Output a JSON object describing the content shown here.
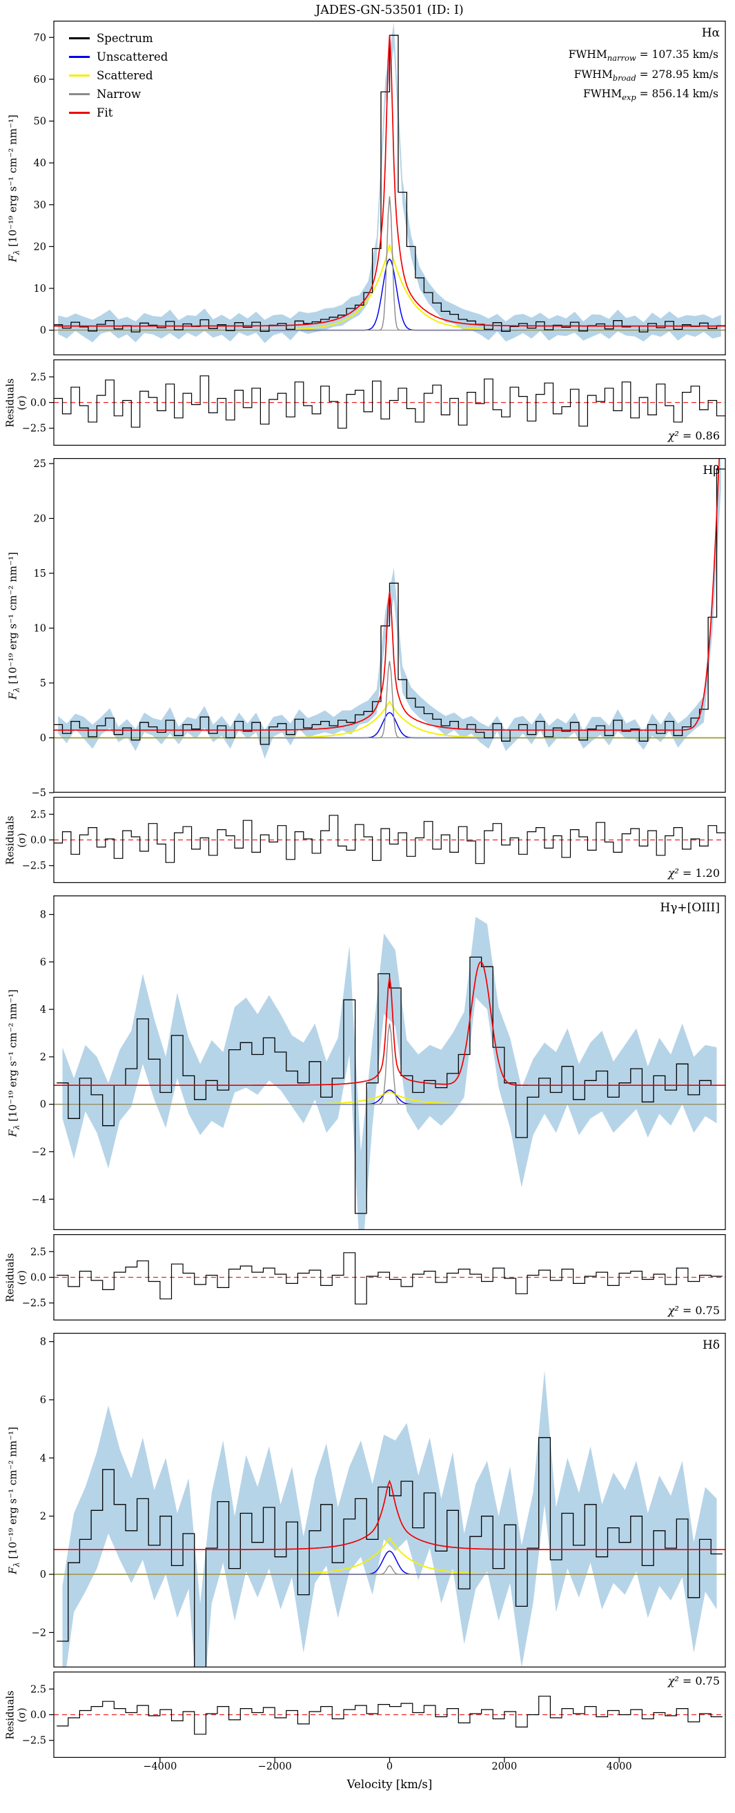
{
  "title": "JADES-GN-53501 (ID: I)",
  "axis": {
    "flux_f": "F",
    "flux_sub": "λ",
    "flux_units": " [10⁻¹⁹ erg s⁻¹ cm⁻² nm⁻¹]",
    "resid_label": "Residuals",
    "resid_sigma": "(σ)",
    "xlabel": "Velocity [km/s]"
  },
  "legend": [
    {
      "label": "Spectrum",
      "color_key": "spectrum"
    },
    {
      "label": "Unscattered",
      "color_key": "unscattered"
    },
    {
      "label": "Scattered",
      "color_key": "scattered"
    },
    {
      "label": "Narrow",
      "color_key": "narrow"
    },
    {
      "label": "Fit",
      "color_key": "fit"
    }
  ],
  "colors": {
    "spectrum": "#000000",
    "unscattered": "#0000ee",
    "scattered": "#f5ef00",
    "narrow": "#8a8a8a",
    "fit": "#f00000",
    "band": "#a9cde4",
    "zero_line": "#808080",
    "resid_zero": "#f02020"
  },
  "chart_meta": {
    "xlim": [
      -5850,
      5850
    ],
    "xticks": {
      "values": [
        -4000,
        -2000,
        0,
        2000,
        4000
      ],
      "labels": [
        "−4000",
        "−2000",
        "0",
        "2000",
        "4000"
      ]
    },
    "resid_ylim": [
      -4.2,
      4.2
    ],
    "resid_yticks": [
      -2.5,
      0,
      2.5
    ]
  },
  "chart_data": [
    {
      "type": "line",
      "label": "Hα",
      "chi2": {
        "sym": "χ²",
        "val": " = 0.86"
      },
      "annotations": [
        {
          "pre": "FWHM",
          "sub": "narrow",
          "post": " = 107.35 km/s"
        },
        {
          "pre": "FWHM",
          "sub": "broad",
          "post": " = 278.95 km/s"
        },
        {
          "pre": "FWHM",
          "sub": "exp",
          "post": " = 856.14 km/s"
        }
      ],
      "ylim": [
        -6,
        74
      ],
      "yticks": [
        0,
        10,
        20,
        30,
        40,
        50,
        60,
        70
      ],
      "continuum": 1.0,
      "model": {
        "narrow": {
          "amp": 32,
          "sigma": 46
        },
        "unscattered": {
          "amp": 17,
          "sigma": 118
        },
        "scattered": {
          "amp": 20.5,
          "tau": 365
        },
        "extra_lines": []
      },
      "spectrum": {
        "x0": -5775,
        "dx": 150,
        "flux": [
          1.3,
          0.5,
          1.9,
          0.8,
          -0.2,
          1.4,
          2.3,
          0.3,
          1.1,
          -0.4,
          1.7,
          1.2,
          0.6,
          2.1,
          0.1,
          1.5,
          0.9,
          2.5,
          0.4,
          1.3,
          -0.1,
          1.8,
          0.7,
          1.9,
          -0.3,
          1.2,
          1.6,
          0.2,
          2.2,
          1.6,
          2.0,
          2.6,
          3.1,
          3.6,
          5.2,
          6.0,
          9.0,
          19.5,
          57.0,
          70.5,
          33.0,
          20.0,
          12.5,
          9.0,
          6.5,
          4.5,
          3.8,
          2.6,
          2.2,
          1.4,
          0.2,
          1.8,
          -0.3,
          0.9,
          1.6,
          0.5,
          2.0,
          0.1,
          1.2,
          0.7,
          1.9,
          -0.2,
          1.1,
          1.5,
          0.3,
          2.3,
          0.8,
          1.0,
          -0.4,
          1.6,
          0.6,
          2.1,
          0.2,
          1.3,
          0.9,
          1.7,
          0.4,
          1.1
        ],
        "err": [
          2.2,
          2.5,
          2.1,
          2.4,
          2.7,
          2.2,
          2.6,
          2.3,
          2.1,
          2.5,
          2.4,
          2.2,
          2.6,
          2.8,
          2.3,
          2.1,
          2.5,
          2.7,
          2.2,
          2.4,
          2.6,
          2.3,
          2.1,
          2.5,
          2.8,
          2.4,
          2.2,
          2.6,
          2.3,
          2.5,
          2.4,
          2.6,
          2.3,
          2.5,
          2.7,
          2.4,
          2.6,
          2.8,
          3.0,
          3.1,
          2.9,
          2.7,
          2.6,
          2.5,
          2.4,
          2.6,
          2.3,
          2.5,
          2.2,
          2.4,
          2.6,
          2.1,
          2.4,
          2.7,
          2.3,
          2.5,
          2.2,
          2.6,
          2.4,
          2.1,
          2.5,
          2.3,
          2.7,
          2.2,
          2.4,
          2.6,
          2.1,
          2.5,
          2.3,
          2.6,
          2.2,
          2.4,
          2.7,
          2.3,
          2.5,
          2.1,
          2.4,
          2.6
        ]
      },
      "residuals": [
        0.4,
        -1.1,
        1.5,
        -0.3,
        -1.9,
        0.7,
        2.2,
        -1.3,
        0.2,
        -2.4,
        1.1,
        0.5,
        -0.8,
        1.8,
        -1.5,
        0.9,
        -0.2,
        2.6,
        -1.0,
        0.4,
        -1.7,
        1.2,
        -0.5,
        1.4,
        -2.1,
        0.3,
        0.9,
        -1.4,
        2.0,
        -0.3,
        -1.1,
        1.6,
        0.1,
        -2.5,
        0.8,
        1.2,
        -0.9,
        2.1,
        -1.6,
        0.2,
        1.4,
        -0.6,
        -1.9,
        0.9,
        1.7,
        -1.2,
        0.4,
        -2.2,
        1.0,
        -0.1,
        2.3,
        -0.7,
        -1.4,
        1.5,
        0.6,
        -1.8,
        0.8,
        1.9,
        -1.1,
        -0.4,
        1.3,
        -2.3,
        0.7,
        0.1,
        1.4,
        -0.8,
        2.0,
        -1.5,
        0.5,
        -1.2,
        1.8,
        -0.3,
        -1.9,
        1.0,
        1.6,
        -0.7,
        0.2,
        -1.3
      ]
    },
    {
      "type": "line",
      "label": "Hβ",
      "chi2": {
        "sym": "χ²",
        "val": " = 1.20"
      },
      "ylim": [
        -5,
        25.5
      ],
      "yticks": [
        -5,
        0,
        5,
        10,
        15,
        20,
        25
      ],
      "continuum": 0.7,
      "model": {
        "narrow": {
          "amp": 7.0,
          "sigma": 46
        },
        "unscattered": {
          "amp": 2.3,
          "sigma": 118
        },
        "scattered": {
          "amp": 3.3,
          "tau": 365
        },
        "extra_lines": [
          {
            "center": 5950,
            "amp": 40,
            "sigma": 210
          }
        ]
      },
      "spectrum": {
        "x0": -5775,
        "dx": 150,
        "flux": [
          1.2,
          0.4,
          1.5,
          0.9,
          0.1,
          1.1,
          1.8,
          0.3,
          0.9,
          -0.2,
          1.4,
          1.0,
          0.5,
          1.6,
          0.2,
          1.2,
          0.8,
          1.9,
          0.4,
          1.1,
          0.0,
          1.5,
          0.6,
          1.4,
          -0.6,
          1.0,
          1.3,
          0.3,
          1.7,
          0.9,
          1.2,
          1.5,
          1.1,
          1.6,
          1.4,
          2.1,
          2.4,
          3.3,
          10.2,
          14.1,
          5.3,
          3.6,
          2.8,
          2.2,
          1.7,
          1.1,
          1.5,
          0.8,
          1.2,
          0.5,
          0.0,
          1.3,
          -0.3,
          0.7,
          1.2,
          0.3,
          1.5,
          0.1,
          0.9,
          0.6,
          1.4,
          -0.2,
          0.8,
          1.1,
          0.2,
          1.6,
          0.6,
          0.8,
          -0.3,
          1.2,
          0.4,
          1.5,
          0.2,
          1.0,
          1.8,
          2.6,
          11.0,
          24.5
        ],
        "err": [
          0.8,
          0.9,
          0.7,
          1.0,
          1.1,
          0.8,
          0.9,
          0.7,
          0.8,
          1.0,
          0.9,
          0.8,
          1.1,
          1.2,
          0.8,
          0.7,
          0.9,
          1.0,
          0.8,
          0.9,
          1.0,
          0.8,
          0.7,
          0.9,
          1.3,
          0.9,
          0.8,
          1.0,
          0.9,
          0.9,
          0.9,
          1.0,
          0.8,
          0.9,
          1.1,
          0.9,
          1.0,
          1.1,
          1.3,
          1.4,
          1.2,
          1.0,
          1.0,
          0.9,
          0.8,
          0.9,
          0.8,
          0.9,
          0.8,
          0.9,
          1.0,
          0.7,
          0.9,
          1.1,
          0.8,
          0.9,
          0.8,
          1.0,
          0.9,
          0.7,
          0.9,
          0.8,
          1.1,
          0.8,
          0.9,
          1.0,
          0.7,
          0.9,
          0.8,
          1.0,
          0.8,
          0.9,
          1.1,
          0.9,
          1.0,
          1.2,
          1.5,
          1.8
        ]
      },
      "residuals": [
        -0.3,
        0.8,
        -1.4,
        0.5,
        1.2,
        -0.7,
        0.1,
        -1.8,
        0.9,
        0.3,
        -1.1,
        1.6,
        -0.4,
        -2.2,
        0.7,
        1.3,
        -0.9,
        0.2,
        -1.5,
        1.0,
        0.4,
        -0.8,
        1.9,
        -1.2,
        0.5,
        -0.2,
        1.4,
        -1.9,
        0.8,
        0.1,
        -1.3,
        0.9,
        2.4,
        -0.6,
        -1.0,
        1.5,
        0.3,
        -2.0,
        1.1,
        -0.4,
        0.7,
        -1.6,
        0.2,
        1.8,
        -0.9,
        0.5,
        -1.2,
        1.3,
        -0.1,
        -2.3,
        0.9,
        1.6,
        -0.5,
        0.2,
        -1.4,
        0.8,
        1.2,
        -0.8,
        0.4,
        -1.7,
        1.0,
        0.3,
        -1.0,
        1.7,
        -0.2,
        -1.2,
        0.6,
        1.1,
        -0.6,
        0.9,
        -1.5,
        0.4,
        1.2,
        -0.9,
        0.1,
        -0.6,
        1.4,
        0.7
      ]
    },
    {
      "type": "line",
      "label": "Hγ+[OIII]",
      "chi2": {
        "sym": "χ²",
        "val": " = 0.75"
      },
      "ylim": [
        -5.3,
        8.8
      ],
      "yticks": [
        -4,
        -2,
        0,
        2,
        4,
        6,
        8
      ],
      "continuum": 0.8,
      "model": {
        "narrow": {
          "amp": 3.4,
          "sigma": 50
        },
        "unscattered": {
          "amp": 0.6,
          "sigma": 118
        },
        "scattered": {
          "amp": 0.55,
          "tau": 365
        },
        "extra_lines": [
          {
            "center": 1590,
            "amp": 5.2,
            "sigma": 170
          }
        ]
      },
      "spectrum": {
        "x0": -5700,
        "dx": 200,
        "flux": [
          0.9,
          -0.6,
          1.1,
          0.4,
          -0.9,
          0.8,
          1.5,
          3.6,
          1.9,
          0.5,
          2.9,
          1.2,
          0.2,
          1.0,
          0.6,
          2.3,
          2.6,
          2.1,
          2.8,
          2.2,
          1.4,
          0.9,
          1.8,
          0.3,
          1.1,
          4.4,
          -4.6,
          0.9,
          5.5,
          4.9,
          1.2,
          0.5,
          1.0,
          0.7,
          1.3,
          2.1,
          6.2,
          5.8,
          2.4,
          0.9,
          -1.4,
          0.3,
          1.1,
          0.5,
          1.6,
          0.2,
          1.0,
          1.4,
          0.3,
          0.9,
          1.5,
          0.1,
          1.2,
          0.6,
          1.7,
          0.4,
          1.0,
          0.8
        ],
        "err": [
          1.5,
          1.7,
          1.4,
          1.6,
          1.8,
          1.5,
          1.6,
          1.9,
          1.7,
          1.5,
          1.8,
          1.6,
          1.5,
          1.7,
          1.6,
          1.8,
          1.9,
          1.7,
          1.8,
          1.6,
          1.5,
          1.7,
          1.6,
          1.5,
          1.7,
          2.3,
          2.6,
          1.8,
          1.7,
          1.6,
          1.5,
          1.6,
          1.5,
          1.6,
          1.7,
          1.8,
          1.7,
          1.8,
          1.7,
          1.9,
          2.1,
          1.6,
          1.5,
          1.7,
          1.6,
          1.5,
          1.6,
          1.7,
          1.5,
          1.6,
          1.7,
          1.5,
          1.6,
          1.5,
          1.7,
          1.6,
          1.5,
          1.6
        ]
      },
      "residuals": [
        0.2,
        -0.9,
        0.6,
        -0.3,
        -1.2,
        0.5,
        1.0,
        1.6,
        -0.4,
        -2.1,
        1.3,
        0.4,
        -0.7,
        0.2,
        -1.0,
        0.8,
        1.1,
        0.5,
        0.9,
        0.3,
        -0.6,
        0.4,
        0.7,
        -0.8,
        0.2,
        2.4,
        -2.6,
        0.1,
        0.5,
        -0.2,
        -0.9,
        0.3,
        0.6,
        -0.5,
        0.4,
        0.8,
        0.3,
        -0.4,
        0.9,
        -0.1,
        -1.6,
        0.2,
        0.7,
        -0.3,
        0.8,
        -0.6,
        0.1,
        0.5,
        -0.8,
        0.4,
        0.6,
        -0.2,
        0.3,
        -0.7,
        0.9,
        -0.4,
        0.2,
        0.1
      ]
    },
    {
      "type": "line",
      "label": "Hδ",
      "chi2": {
        "sym": "χ²",
        "val": " = 0.75"
      },
      "ylim": [
        -3.2,
        8.3
      ],
      "yticks": [
        -2,
        0,
        2,
        4,
        6,
        8
      ],
      "continuum": 0.85,
      "model": {
        "narrow": {
          "amp": 0.3,
          "sigma": 50
        },
        "unscattered": {
          "amp": 0.8,
          "sigma": 118
        },
        "scattered": {
          "amp": 1.25,
          "tau": 400
        },
        "extra_lines": []
      },
      "spectrum": {
        "x0": -5700,
        "dx": 200,
        "flux": [
          -2.3,
          0.4,
          1.2,
          2.2,
          3.6,
          2.4,
          1.5,
          2.6,
          1.0,
          2.0,
          0.3,
          1.4,
          -3.4,
          0.9,
          2.5,
          0.2,
          2.1,
          1.1,
          2.3,
          0.6,
          1.8,
          -0.7,
          1.5,
          2.4,
          0.4,
          1.9,
          2.6,
          1.2,
          3.0,
          2.7,
          3.2,
          1.6,
          2.8,
          0.8,
          2.2,
          -0.5,
          1.3,
          2.0,
          0.2,
          1.7,
          -1.1,
          0.9,
          4.7,
          0.5,
          2.1,
          1.0,
          2.4,
          0.6,
          1.6,
          1.1,
          2.0,
          0.3,
          1.5,
          0.9,
          1.9,
          -0.8,
          1.2,
          0.7
        ],
        "err": [
          1.9,
          1.7,
          1.8,
          2.0,
          2.2,
          1.9,
          1.8,
          2.1,
          1.9,
          2.0,
          1.8,
          1.9,
          2.4,
          1.9,
          2.1,
          1.8,
          2.0,
          1.9,
          2.1,
          1.8,
          1.9,
          2.0,
          1.8,
          2.1,
          1.9,
          1.8,
          2.0,
          1.9,
          1.8,
          1.9,
          2.0,
          1.8,
          1.9,
          1.8,
          2.0,
          1.9,
          1.8,
          1.9,
          1.8,
          2.0,
          2.1,
          1.9,
          2.3,
          1.8,
          1.9,
          1.8,
          2.0,
          1.8,
          1.9,
          1.8,
          1.9,
          1.8,
          1.9,
          1.8,
          2.0,
          1.9,
          1.8,
          1.9
        ]
      },
      "residuals": [
        -1.1,
        -0.3,
        0.4,
        0.8,
        1.3,
        0.6,
        0.2,
        0.9,
        -0.1,
        0.5,
        -0.6,
        0.3,
        -1.9,
        0.1,
        0.8,
        -0.5,
        0.6,
        0.2,
        0.7,
        -0.3,
        0.4,
        -0.9,
        0.3,
        0.8,
        -0.4,
        0.5,
        0.9,
        0.1,
        1.0,
        0.8,
        1.1,
        0.2,
        0.9,
        -0.2,
        0.6,
        -0.8,
        0.1,
        0.5,
        -0.4,
        0.3,
        -1.2,
        0.0,
        1.8,
        -0.3,
        0.6,
        0.1,
        0.8,
        -0.2,
        0.4,
        0.0,
        0.5,
        -0.4,
        0.2,
        -0.1,
        0.6,
        -0.7,
        0.1,
        -0.2
      ]
    }
  ]
}
